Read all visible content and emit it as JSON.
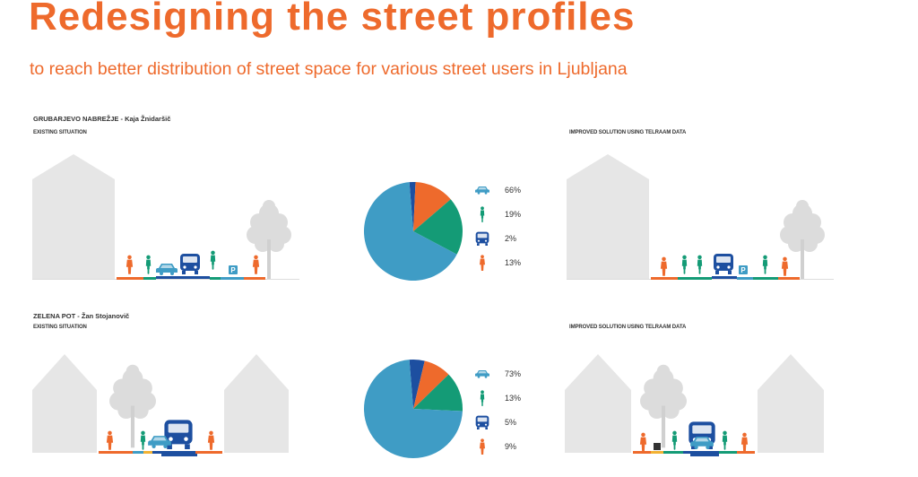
{
  "header": {
    "title": "Redesigning the street profiles",
    "subtitle": "to reach better distribution of street space for various street users in Ljubljana"
  },
  "sections": [
    {
      "title": "GRUBARJEVO NABREŽJE - Kaja Žnidaršič",
      "existing_label": "EXISTING SITUATION",
      "improved_label": "IMPROVED SOLUTION USING TELRAAM DATA",
      "parking_label": "P"
    },
    {
      "title": "ZELENA POT - Žan Stojanovič",
      "existing_label": "EXISTING SITUATION",
      "improved_label": "IMPROVED SOLUTION USING TELRAAM DATA"
    }
  ],
  "colors": {
    "car": "#3f9cc5",
    "bike": "#149b76",
    "bus": "#1d4fa0",
    "pedestrian": "#ee6a2c",
    "accent": "#ee6a2c",
    "house": "#e6e6e6",
    "tree": "#dcdcdc"
  },
  "chart_data": [
    {
      "type": "pie",
      "title": "",
      "categories": [
        "car-icon",
        "bike-icon",
        "bus-icon",
        "pedestrian-icon"
      ],
      "values": [
        66,
        19,
        2,
        13
      ],
      "labels": [
        "66%",
        "19%",
        "2%",
        "13%"
      ]
    },
    {
      "type": "pie",
      "title": "",
      "categories": [
        "car-icon",
        "bike-icon",
        "bus-icon",
        "pedestrian-icon"
      ],
      "values": [
        73,
        13,
        5,
        9
      ],
      "labels": [
        "73%",
        "13%",
        "5%",
        "9%"
      ]
    }
  ]
}
